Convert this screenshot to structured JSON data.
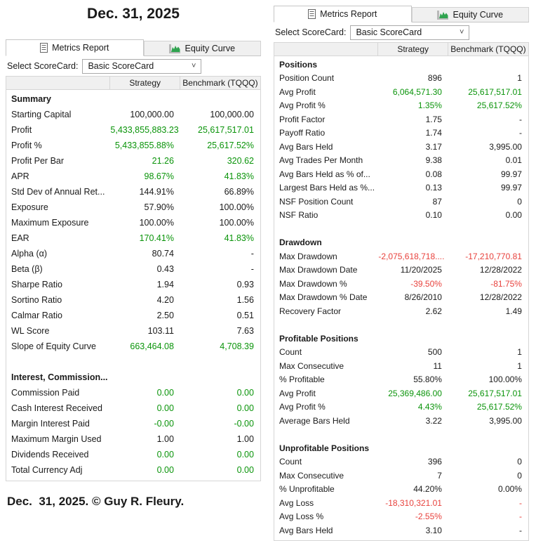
{
  "page": {
    "title": "Dec. 31, 2025",
    "footer": "Dec.  31, 2025. © Guy R. Fleury."
  },
  "colors": {
    "black": "#1a1a1a",
    "green": "#0a940a",
    "red": "#e8413c"
  },
  "panels": [
    {
      "id": "left",
      "tabs": [
        {
          "label": "Metrics Report",
          "icon": "document-icon",
          "active": true
        },
        {
          "label": "Equity Curve",
          "icon": "equity-curve-icon",
          "active": false
        }
      ],
      "scorecard_label": "Select ScoreCard:",
      "scorecard_value": "Basic ScoreCard",
      "columns": [
        "",
        "Strategy",
        "Benchmark (TQQQ)"
      ],
      "sections": [
        {
          "title": "Summary",
          "rows": [
            {
              "label": "Starting Capital",
              "strategy": "100,000.00",
              "benchmark": "100,000.00",
              "color": "black"
            },
            {
              "label": "Profit",
              "strategy": "5,433,855,883.23",
              "benchmark": "25,617,517.01",
              "color": "green"
            },
            {
              "label": "Profit %",
              "strategy": "5,433,855.88%",
              "benchmark": "25,617.52%",
              "color": "green"
            },
            {
              "label": "Profit Per Bar",
              "strategy": "21.26",
              "benchmark": "320.62",
              "color": "green"
            },
            {
              "label": "APR",
              "strategy": "98.67%",
              "benchmark": "41.83%",
              "color": "green"
            },
            {
              "label": "Std Dev of Annual Ret...",
              "strategy": "144.91%",
              "benchmark": "66.89%",
              "color": "black"
            },
            {
              "label": "Exposure",
              "strategy": "57.90%",
              "benchmark": "100.00%",
              "color": "black"
            },
            {
              "label": "Maximum Exposure",
              "strategy": "100.00%",
              "benchmark": "100.00%",
              "color": "black"
            },
            {
              "label": "EAR",
              "strategy": "170.41%",
              "benchmark": "41.83%",
              "color": "green"
            },
            {
              "label": "Alpha (α)",
              "strategy": "80.74",
              "benchmark": "-",
              "color": "black"
            },
            {
              "label": "Beta (β)",
              "strategy": "0.43",
              "benchmark": "-",
              "color": "black"
            },
            {
              "label": "Sharpe Ratio",
              "strategy": "1.94",
              "benchmark": "0.93",
              "color": "black"
            },
            {
              "label": "Sortino Ratio",
              "strategy": "4.20",
              "benchmark": "1.56",
              "color": "black"
            },
            {
              "label": "Calmar Ratio",
              "strategy": "2.50",
              "benchmark": "0.51",
              "color": "black"
            },
            {
              "label": "WL Score",
              "strategy": "103.11",
              "benchmark": "7.63",
              "color": "black"
            },
            {
              "label": "Slope of Equity Curve",
              "strategy": "663,464.08",
              "benchmark": "4,708.39",
              "color": "green"
            }
          ]
        },
        {
          "title": "Interest, Commission...",
          "rows": [
            {
              "label": "Commission Paid",
              "strategy": "0.00",
              "benchmark": "0.00",
              "color": "green"
            },
            {
              "label": "Cash Interest Received",
              "strategy": "0.00",
              "benchmark": "0.00",
              "color": "green"
            },
            {
              "label": "Margin Interest Paid",
              "strategy": "-0.00",
              "benchmark": "-0.00",
              "color": "green"
            },
            {
              "label": "Maximum Margin Used",
              "strategy": "1.00",
              "benchmark": "1.00",
              "color": "black"
            },
            {
              "label": "Dividends Received",
              "strategy": "0.00",
              "benchmark": "0.00",
              "color": "green"
            },
            {
              "label": "Total Currency Adj",
              "strategy": "0.00",
              "benchmark": "0.00",
              "color": "green"
            }
          ]
        }
      ]
    },
    {
      "id": "right",
      "tabs": [
        {
          "label": "Metrics Report",
          "icon": "document-icon",
          "active": true
        },
        {
          "label": "Equity Curve",
          "icon": "equity-curve-icon",
          "active": false
        }
      ],
      "scorecard_label": "Select ScoreCard:",
      "scorecard_value": "Basic ScoreCard",
      "columns": [
        "",
        "Strategy",
        "Benchmark (TQQQ)"
      ],
      "sections": [
        {
          "title": "Positions",
          "rows": [
            {
              "label": "Position Count",
              "strategy": "896",
              "benchmark": "1",
              "color": "black"
            },
            {
              "label": "Avg Profit",
              "strategy": "6,064,571.30",
              "benchmark": "25,617,517.01",
              "color": "green"
            },
            {
              "label": "Avg Profit %",
              "strategy": "1.35%",
              "benchmark": "25,617.52%",
              "color": "green"
            },
            {
              "label": "Profit Factor",
              "strategy": "1.75",
              "benchmark": "-",
              "color": "black"
            },
            {
              "label": "Payoff Ratio",
              "strategy": "1.74",
              "benchmark": "-",
              "color": "black"
            },
            {
              "label": "Avg Bars Held",
              "strategy": "3.17",
              "benchmark": "3,995.00",
              "color": "black"
            },
            {
              "label": "Avg Trades Per Month",
              "strategy": "9.38",
              "benchmark": "0.01",
              "color": "black"
            },
            {
              "label": "Avg Bars Held as % of...",
              "strategy": "0.08",
              "benchmark": "99.97",
              "color": "black"
            },
            {
              "label": "Largest Bars Held as %...",
              "strategy": "0.13",
              "benchmark": "99.97",
              "color": "black"
            },
            {
              "label": "NSF Position Count",
              "strategy": "87",
              "benchmark": "0",
              "color": "black"
            },
            {
              "label": "NSF Ratio",
              "strategy": "0.10",
              "benchmark": "0.00",
              "color": "black"
            }
          ]
        },
        {
          "title": "Drawdown",
          "rows": [
            {
              "label": "Max Drawdown",
              "strategy": "-2,075,618,718....",
              "benchmark": "-17,210,770.81",
              "color": "red"
            },
            {
              "label": "Max Drawdown Date",
              "strategy": "11/20/2025",
              "benchmark": "12/28/2022",
              "color": "black"
            },
            {
              "label": "Max Drawdown %",
              "strategy": "-39.50%",
              "benchmark": "-81.75%",
              "color": "red"
            },
            {
              "label": "Max Drawdown % Date",
              "strategy": "8/26/2010",
              "benchmark": "12/28/2022",
              "color": "black"
            },
            {
              "label": "Recovery Factor",
              "strategy": "2.62",
              "benchmark": "1.49",
              "color": "black"
            }
          ]
        },
        {
          "title": "Profitable Positions",
          "rows": [
            {
              "label": "Count",
              "strategy": "500",
              "benchmark": "1",
              "color": "black"
            },
            {
              "label": "Max Consecutive",
              "strategy": "11",
              "benchmark": "1",
              "color": "black"
            },
            {
              "label": "% Profitable",
              "strategy": "55.80%",
              "benchmark": "100.00%",
              "color": "black"
            },
            {
              "label": "Avg Profit",
              "strategy": "25,369,486.00",
              "benchmark": "25,617,517.01",
              "color": "green"
            },
            {
              "label": "Avg Profit %",
              "strategy": "4.43%",
              "benchmark": "25,617.52%",
              "color": "green"
            },
            {
              "label": "Average Bars Held",
              "strategy": "3.22",
              "benchmark": "3,995.00",
              "color": "black"
            }
          ]
        },
        {
          "title": "Unprofitable Positions",
          "rows": [
            {
              "label": "Count",
              "strategy": "396",
              "benchmark": "0",
              "color": "black"
            },
            {
              "label": "Max Consecutive",
              "strategy": "7",
              "benchmark": "0",
              "color": "black"
            },
            {
              "label": "% Unprofitable",
              "strategy": "44.20%",
              "benchmark": "0.00%",
              "color": "black"
            },
            {
              "label": "Avg Loss",
              "strategy": "-18,310,321.01",
              "benchmark": "-",
              "color": "red"
            },
            {
              "label": "Avg Loss %",
              "strategy": "-2.55%",
              "benchmark": "-",
              "color": "red"
            },
            {
              "label": "Avg Bars Held",
              "strategy": "3.10",
              "benchmark": "-",
              "color": "black"
            }
          ]
        }
      ]
    }
  ]
}
